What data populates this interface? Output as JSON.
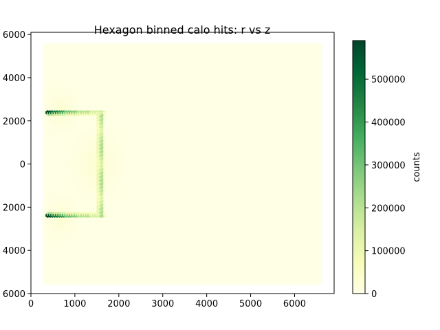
{
  "chart_data": {
    "type": "heatmap",
    "subtype": "hexbin",
    "title": "Hexagon binned calo hits: r vs z",
    "xlabel": "",
    "ylabel": "",
    "xlim": [
      0,
      6900
    ],
    "ylim": [
      -6000,
      6100
    ],
    "x_ticks": [
      0,
      1000,
      2000,
      3000,
      4000,
      5000,
      6000
    ],
    "x_tick_labels": [
      "0",
      "1000",
      "2000",
      "3000",
      "4000",
      "5000",
      "6000"
    ],
    "y_ticks": [
      6000,
      4000,
      2000,
      0,
      -2000,
      -4000,
      -6000
    ],
    "y_tick_labels": [
      "6000",
      "4000",
      "2000",
      "0",
      "2000",
      "4000",
      "6000"
    ],
    "data_extent": {
      "x": [
        280,
        6620
      ],
      "y": [
        -5600,
        5600
      ]
    },
    "colormap": "YlGn",
    "colorbar": {
      "label": "counts",
      "min": 0,
      "max": 590000,
      "ticks": [
        0,
        100000,
        200000,
        300000,
        400000,
        500000
      ],
      "tick_labels": [
        "0",
        "100000",
        "200000",
        "300000",
        "400000",
        "500000"
      ]
    },
    "features": [
      {
        "name": "upper-barrel-band",
        "x": [
          380,
          1650
        ],
        "y": 2380,
        "counts": [
          520000,
          150000
        ]
      },
      {
        "name": "lower-barrel-band",
        "x": [
          380,
          1650
        ],
        "y": -2380,
        "counts": [
          540000,
          150000
        ]
      },
      {
        "name": "endcap-column",
        "x": 1600,
        "y": [
          -2380,
          2380
        ],
        "counts": 180000
      },
      {
        "name": "background-level",
        "counts": 15000
      }
    ]
  },
  "colors": {
    "background_bin": "#ffffe5",
    "colormap_stops": [
      "#ffffe5",
      "#f7fcb9",
      "#d9f0a3",
      "#addd8e",
      "#78c679",
      "#41ab5d",
      "#238443",
      "#006837",
      "#004529"
    ]
  }
}
